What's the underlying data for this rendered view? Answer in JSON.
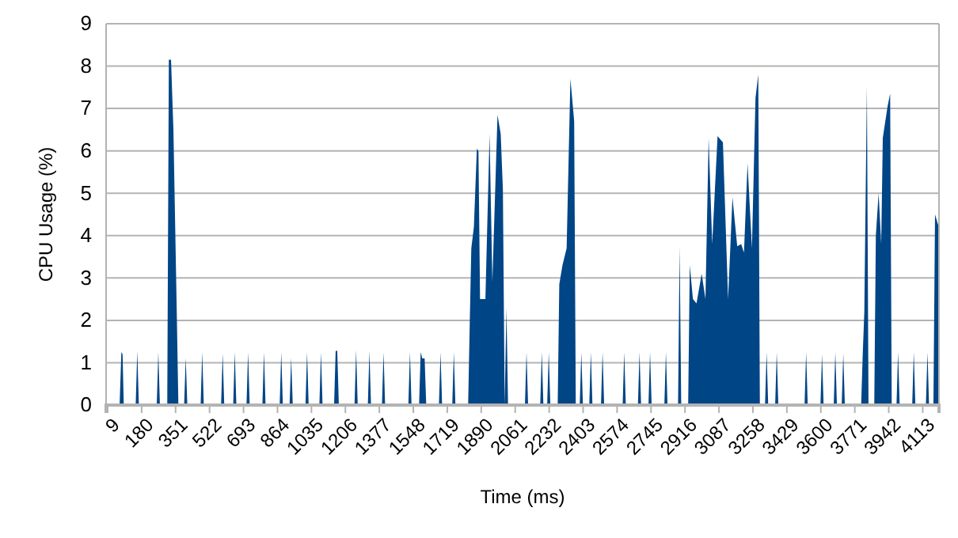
{
  "chart_data": {
    "type": "area",
    "xlabel": "Time (ms)",
    "ylabel": "CPU Usage (%)",
    "xlim": [
      1,
      4195
    ],
    "xticks": [
      9,
      180,
      351,
      522,
      693,
      864,
      1035,
      1206,
      1377,
      1548,
      1719,
      1890,
      2061,
      2232,
      2403,
      2574,
      2745,
      2916,
      3087,
      3258,
      3429,
      3600,
      3771,
      3942,
      4113
    ],
    "ylim": [
      0,
      9
    ],
    "yticks": [
      0,
      1,
      2,
      3,
      4,
      5,
      6,
      7,
      8,
      9
    ],
    "grid": "y",
    "series": [
      {
        "color": "#004586",
        "x": [
          9,
          69,
          78,
          84,
          90,
          150,
          158,
          166,
          256,
          264,
          272,
          309,
          317,
          328,
          340,
          357,
          365,
          394,
          402,
          410,
          477,
          485,
          493,
          580,
          588,
          596,
          641,
          649,
          657,
          708,
          716,
          724,
          788,
          796,
          804,
          875,
          883,
          891,
          925,
          933,
          941,
          1005,
          1013,
          1021,
          1075,
          1083,
          1091,
          1149,
          1157,
          1165,
          1173,
          1252,
          1260,
          1268,
          1319,
          1327,
          1335,
          1390,
          1398,
          1406,
          1523,
          1531,
          1539,
          1577,
          1585,
          1593,
          1605,
          1613,
          1677,
          1685,
          1693,
          1744,
          1752,
          1760,
          1824,
          1832,
          1840,
          1853,
          1868,
          1876,
          1884,
          1898,
          1911,
          1932,
          1946,
          1972,
          1988,
          1999,
          2008,
          2017,
          2025,
          2110,
          2118,
          2126,
          2187,
          2195,
          2203,
          2222,
          2230,
          2238,
          2275,
          2283,
          2299,
          2320,
          2339,
          2358,
          2366,
          2386,
          2394,
          2402,
          2434,
          2442,
          2450,
          2493,
          2501,
          2509,
          2602,
          2610,
          2618,
          2679,
          2687,
          2695,
          2732,
          2740,
          2748,
          2812,
          2820,
          2828,
          2881,
          2889,
          2897,
          2932,
          2940,
          2956,
          2974,
          3000,
          3019,
          3035,
          3053,
          3080,
          3107,
          3133,
          3155,
          3179,
          3199,
          3213,
          3231,
          3253,
          3271,
          3285,
          3293,
          3319,
          3327,
          3335,
          3370,
          3378,
          3386,
          3518,
          3526,
          3534,
          3598,
          3606,
          3614,
          3665,
          3673,
          3681,
          3705,
          3713,
          3721,
          3803,
          3811,
          3819,
          3832,
          3840,
          3869,
          3877,
          3891,
          3904,
          3912,
          3936,
          3949,
          3957,
          3981,
          3989,
          3997,
          4060,
          4068,
          4076,
          4129,
          4137,
          4145,
          4167,
          4175,
          4191
        ],
        "values": [
          0,
          0,
          1.25,
          1.2,
          0,
          0,
          1.28,
          0,
          0,
          1.25,
          0,
          0,
          8.15,
          8.15,
          6.5,
          2.15,
          0,
          0,
          1.12,
          0,
          0,
          1.25,
          0,
          0,
          1.22,
          0,
          0,
          1.25,
          0,
          0,
          1.25,
          0,
          0,
          1.25,
          0,
          0,
          1.25,
          0,
          0,
          1.12,
          0,
          0,
          1.25,
          0,
          0,
          1.25,
          0,
          0,
          1.28,
          1.28,
          0,
          0,
          1.3,
          0,
          0,
          1.28,
          0,
          0,
          1.25,
          0,
          0,
          1.25,
          0,
          0,
          1.25,
          1.1,
          1.1,
          0,
          0,
          1.25,
          0,
          0,
          1.25,
          0,
          0,
          1.9,
          3.7,
          4.2,
          6.05,
          6,
          2.5,
          2.5,
          2.5,
          6.4,
          2.9,
          6.85,
          6.4,
          5.1,
          0,
          2.3,
          0,
          0,
          1.25,
          0,
          0,
          1.25,
          0,
          0,
          1.25,
          0,
          0,
          2.85,
          3.3,
          3.7,
          7.7,
          6.7,
          0,
          0,
          1.25,
          0,
          0,
          1.25,
          0,
          0,
          1.25,
          0,
          0,
          1.25,
          0,
          0,
          1.25,
          0,
          0,
          1.25,
          0,
          0,
          1.25,
          0,
          0,
          3.75,
          0,
          0,
          3.3,
          2.5,
          2.4,
          3.1,
          2.5,
          6.3,
          3.8,
          6.35,
          6.2,
          2.5,
          4.9,
          3.75,
          3.8,
          3.6,
          5.7,
          3.7,
          7.25,
          7.8,
          0,
          0,
          1.25,
          0,
          0,
          1.25,
          0,
          0,
          1.25,
          0,
          0,
          1.2,
          0,
          0,
          1.25,
          0,
          0,
          1.22,
          0,
          0,
          1.2,
          2.2,
          7.55,
          0,
          0,
          4,
          5,
          3.8,
          6.3,
          7.05,
          7.35,
          0,
          0,
          1.25,
          0,
          0,
          1.25,
          0,
          0,
          1.25,
          0,
          0,
          4.5,
          4.25
        ]
      }
    ]
  }
}
